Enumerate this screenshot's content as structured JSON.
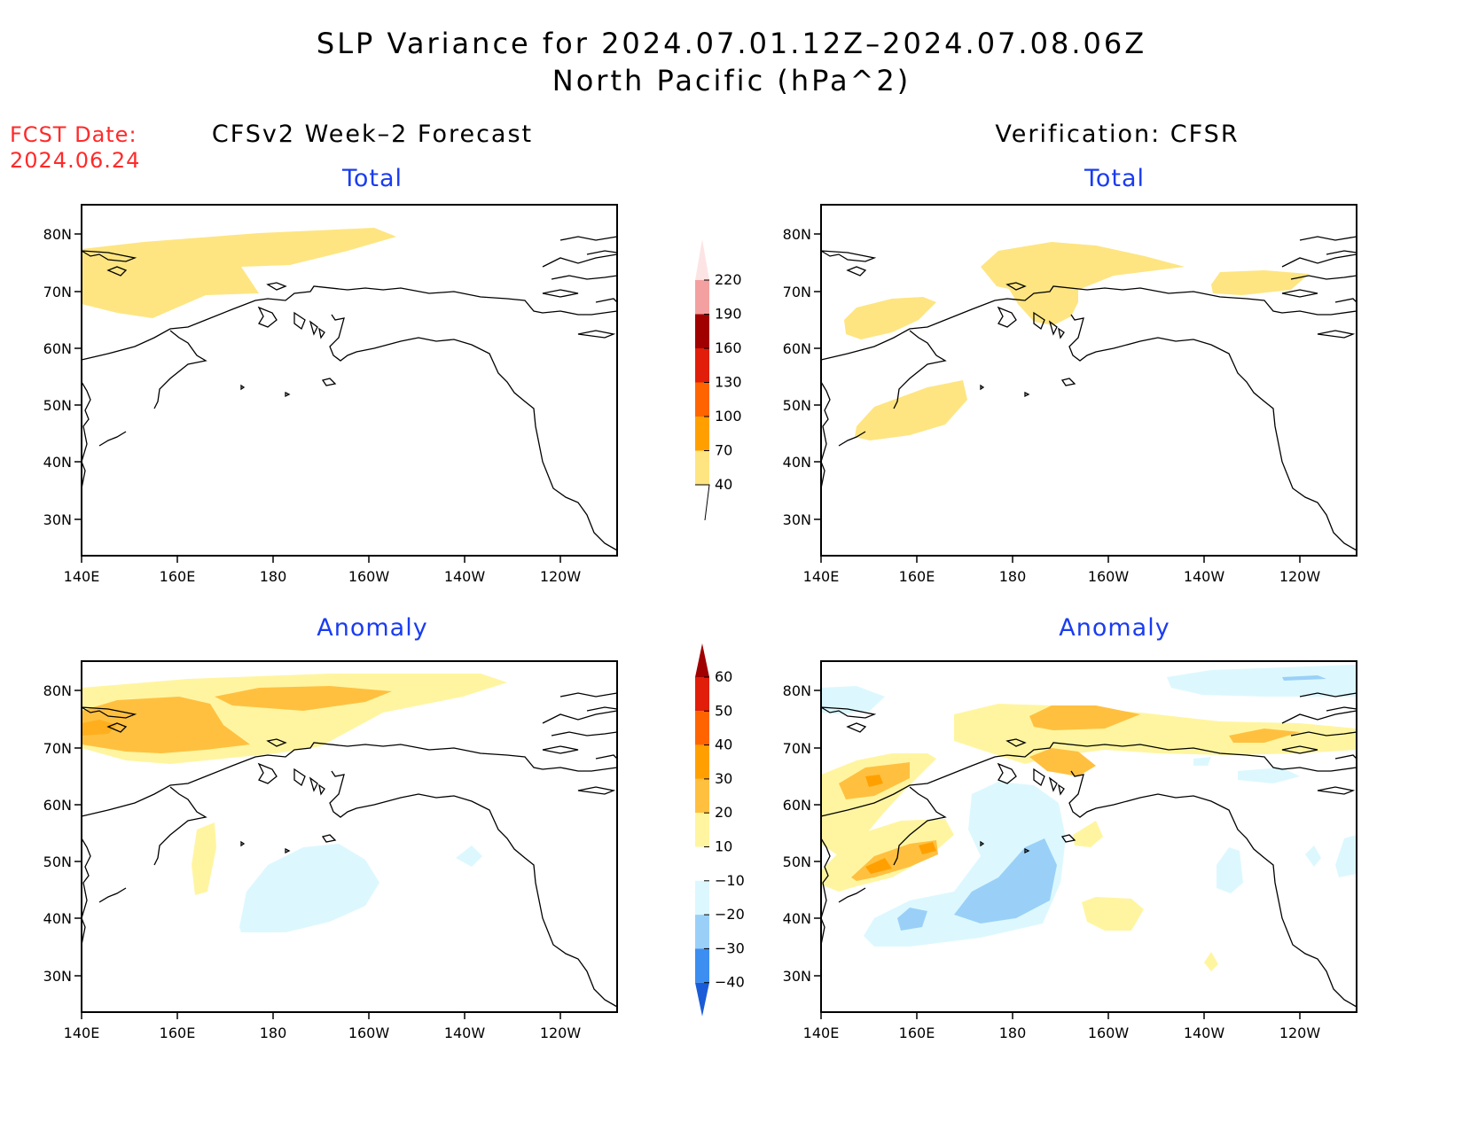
{
  "title_line1": "SLP Variance for 2024.07.01.12Z–2024.07.08.06Z",
  "title_line2": "North Pacific (hPa^2)",
  "fcst_date_label": "FCST Date:",
  "fcst_date_value": "2024.06.24",
  "left_column_title": "CFSv2 Week–2 Forecast",
  "right_column_title": "Verification: CFSR",
  "panel_titles": {
    "top_left": "Total",
    "top_right": "Total",
    "bottom_left": "Anomaly",
    "bottom_right": "Anomaly"
  },
  "lon_ticks": [
    "140E",
    "160E",
    "180",
    "160W",
    "140W",
    "120W"
  ],
  "lat_ticks": [
    "80N",
    "70N",
    "60N",
    "50N",
    "40N",
    "30N"
  ],
  "total_colorbar": {
    "labels": [
      "220",
      "190",
      "160",
      "130",
      "100",
      "70",
      "40"
    ],
    "colors": [
      "#fde4e4",
      "#f4a0a0",
      "#a00000",
      "#e01e0a",
      "#ff6400",
      "#ffa000",
      "#fee581"
    ]
  },
  "anomaly_colorbar": {
    "labels": [
      "60",
      "50",
      "40",
      "30",
      "20",
      "10",
      "−10",
      "−20",
      "−30",
      "−40"
    ],
    "colors": [
      "#a00000",
      "#e01e0a",
      "#ff6400",
      "#ffa000",
      "#ffc040",
      "#fff5a0",
      "#ffffff",
      "#dcf8fe",
      "#9ad0f8",
      "#3c8ef0",
      "#1a5cd8"
    ]
  }
}
